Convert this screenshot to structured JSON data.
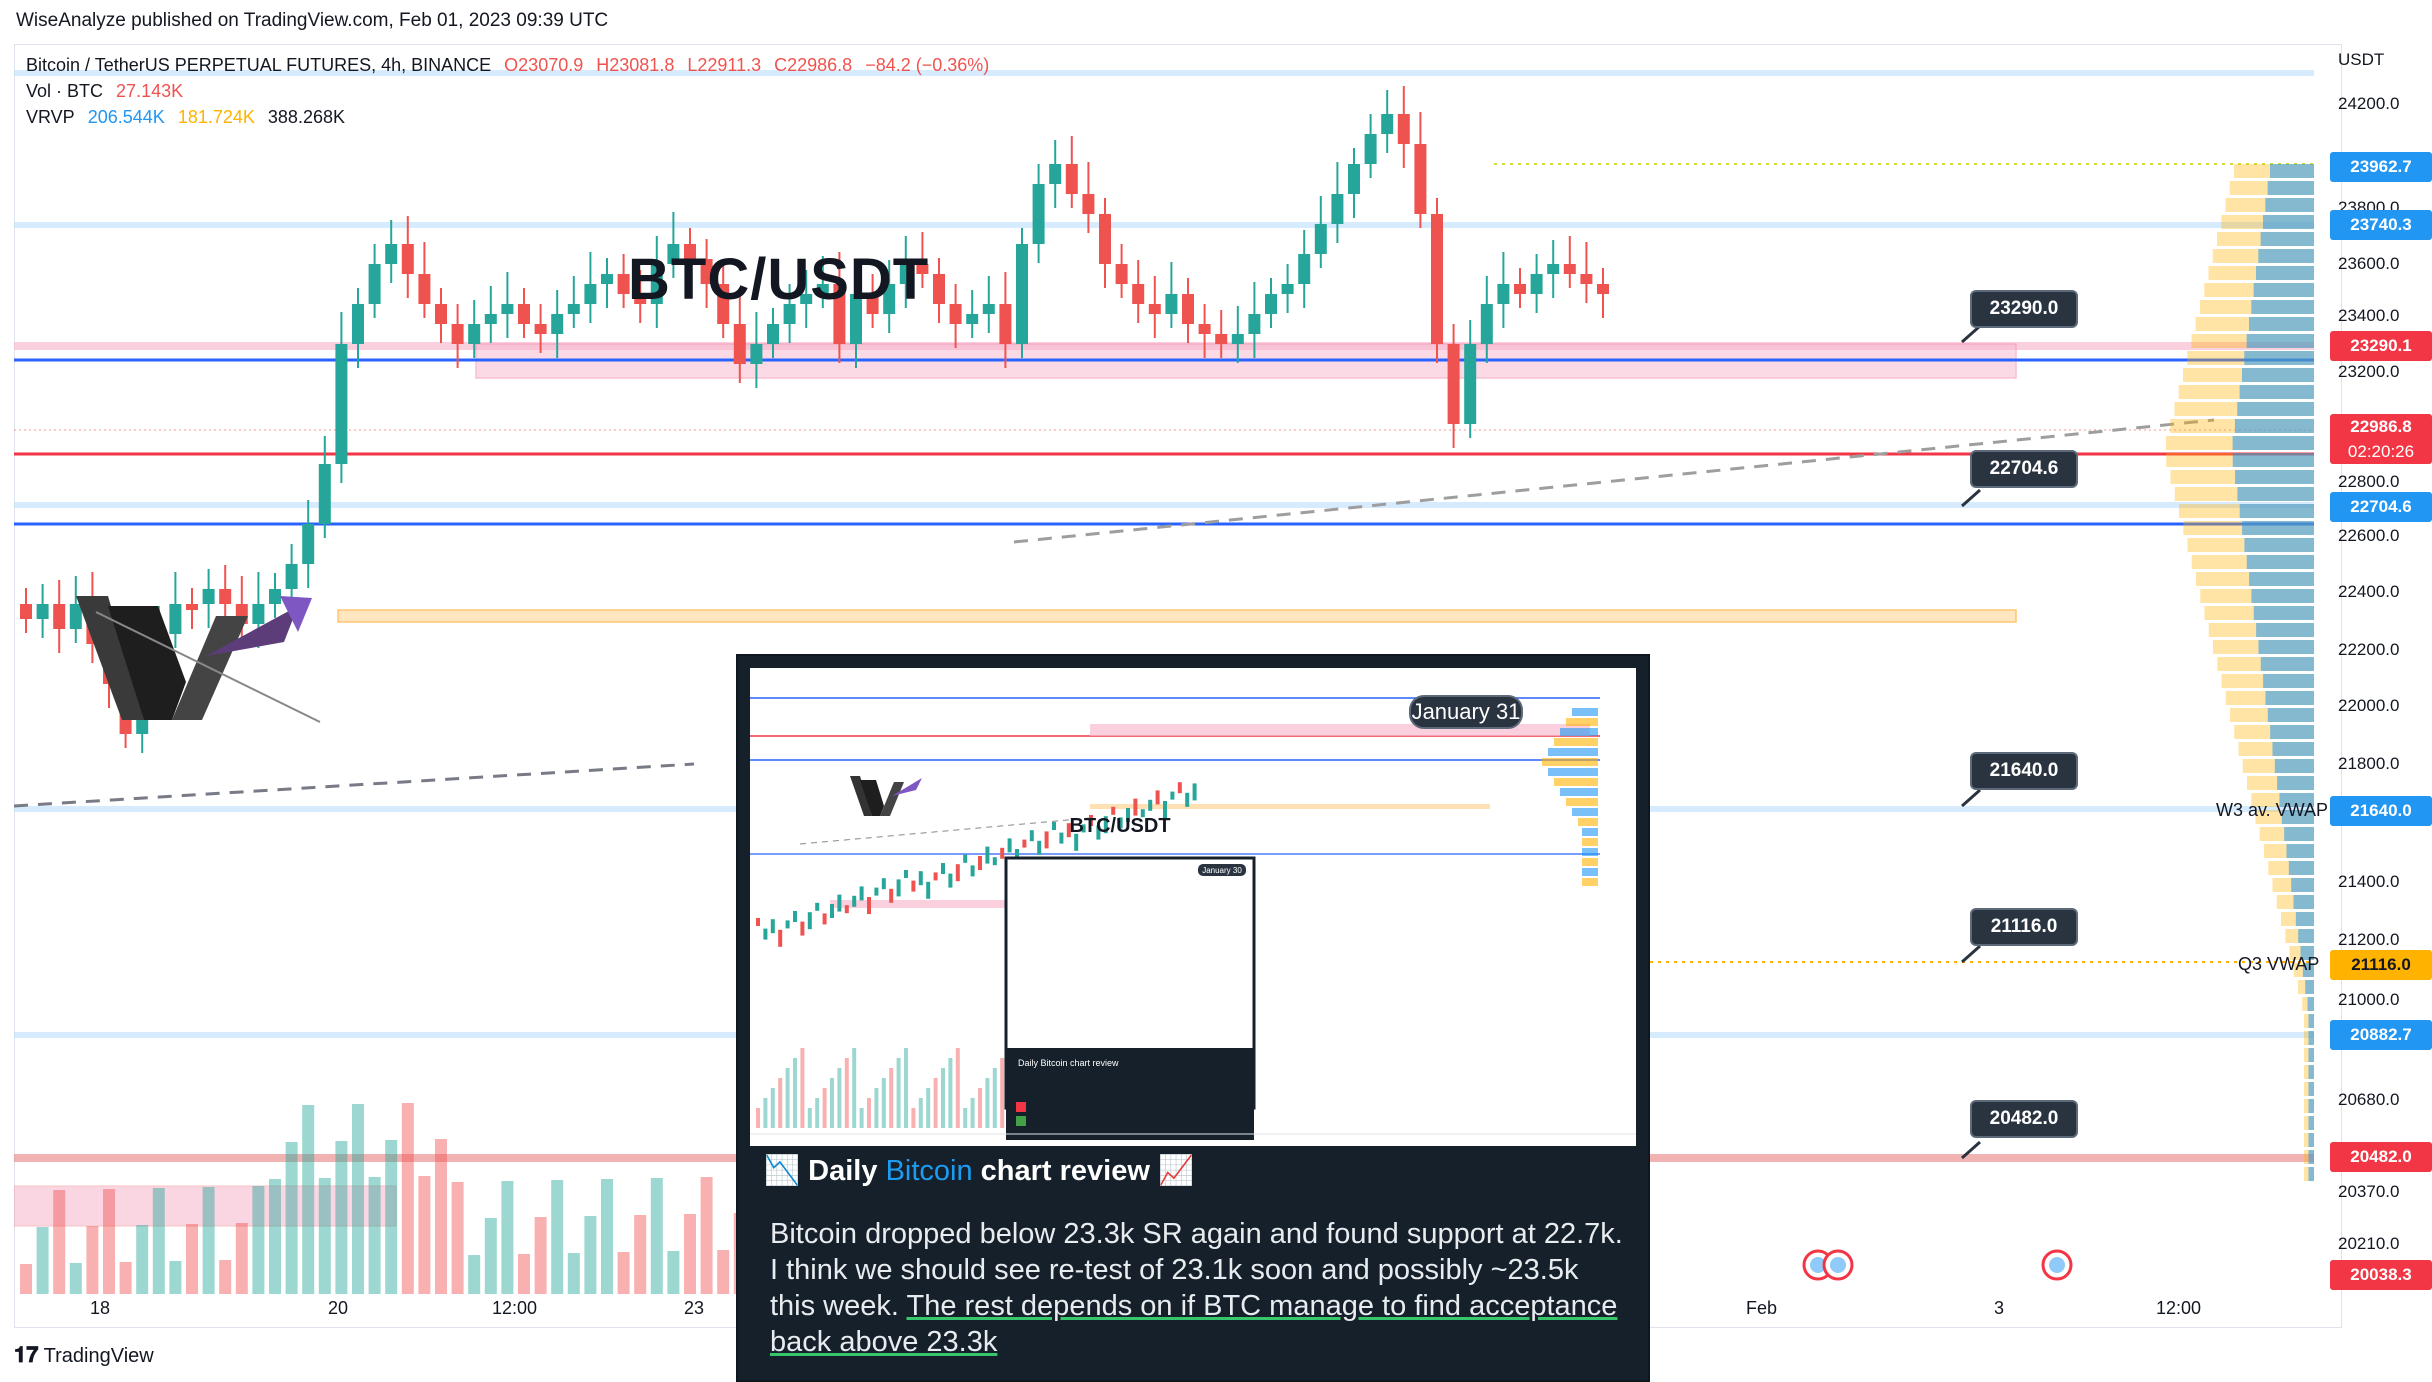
{
  "header": {
    "text": "WiseAnalyze published on TradingView.com, Feb 01, 2023 09:39 UTC"
  },
  "legend": {
    "symbol": "Bitcoin / TetherUS PERPETUAL FUTURES, 4h, BINANCE",
    "open": "O23070.9",
    "high": "H23081.8",
    "low": "L22911.3",
    "close": "C22986.8",
    "change": "−84.2 (−0.36%)",
    "vol_label": "Vol · BTC",
    "vol_value": "27.143K",
    "vrvp_label": "VRVP",
    "vrvp_up": "206.544K",
    "vrvp_down": "181.724K",
    "vrvp_total": "388.268K"
  },
  "axis": {
    "currency": "USDT",
    "ticks": [
      "24200.0",
      "23800.0",
      "23600.0",
      "23400.0",
      "23200.0",
      "22800.0",
      "22600.0",
      "22400.0",
      "22200.0",
      "22000.0",
      "21800.0",
      "21400.0",
      "21200.0",
      "21000.0",
      "20680.0",
      "20370.0",
      "20210.0"
    ],
    "labels": [
      "23962.7",
      "23740.3",
      "23290.1",
      "22986.8",
      "02:20:26",
      "22704.6",
      "21640.0",
      "21116.0",
      "20882.7",
      "20482.0",
      "20038.3"
    ]
  },
  "callouts": [
    "23290.0",
    "22704.6",
    "21640.0",
    "21116.0",
    "20482.0"
  ],
  "vwap_labels": {
    "w3": "W3 av. VWAP",
    "q3": "Q3 VWAP"
  },
  "time_axis": [
    "18",
    "20",
    "12:00",
    "23",
    "Feb",
    "3",
    "12:00"
  ],
  "pair_title": "BTC/USDT",
  "tweet": {
    "emoji_left": "📉",
    "title_prefix": "Daily",
    "title_link": "Bitcoin",
    "title_suffix": "chart review",
    "emoji_right": "📈",
    "body_plain": "Bitcoin dropped below 23.3k SR again and found support at 22.7k. I think we should see re-test of 23.1k soon and possibly ~23.5k this week.",
    "body_underlined": "The rest depends on if BTC manage to find acceptance back above 23.3k",
    "inner_date_tag": "January 31",
    "inner_pair_title": "BTC/USDT",
    "inner_card_tag": "January 30",
    "inner_card_title": "Daily Bitcoin chart review"
  },
  "footer": {
    "brand": "TradingView"
  },
  "colors": {
    "up": "#26a69a",
    "down": "#ef5350",
    "blue_line": "#2962ff",
    "red_line": "#f23645",
    "card_bg": "#15202b",
    "link": "#1d9bf0"
  }
}
